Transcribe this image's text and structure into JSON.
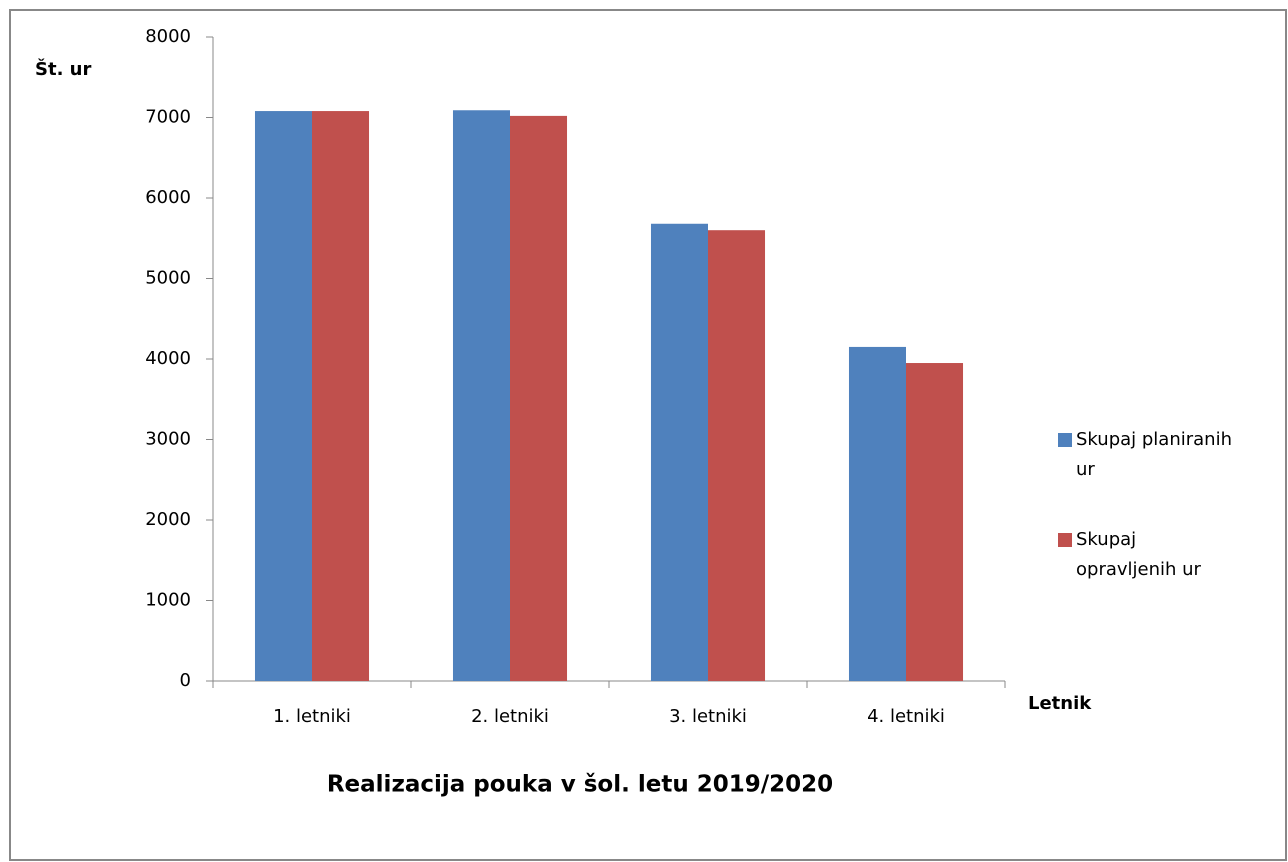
{
  "chart_data": {
    "type": "bar",
    "title": "Realizacija pouka v šol. letu 2019/2020",
    "y_label": "Št. ur",
    "x_label": "Letnik",
    "categories": [
      "1. letniki",
      "2. letniki",
      "3. letniki",
      "4. letniki"
    ],
    "series": [
      {
        "name": "Skupaj planiranih ur",
        "color": "#4f81bd",
        "values": [
          7080,
          7090,
          5680,
          4150
        ]
      },
      {
        "name": "Skupaj opravljenih ur",
        "color": "#c0504d",
        "values": [
          7080,
          7020,
          5600,
          3950
        ]
      }
    ],
    "ylim": [
      0,
      8000
    ],
    "yticks": [
      0,
      1000,
      2000,
      3000,
      4000,
      5000,
      6000,
      7000,
      8000
    ],
    "grid": false,
    "legend": "right"
  }
}
